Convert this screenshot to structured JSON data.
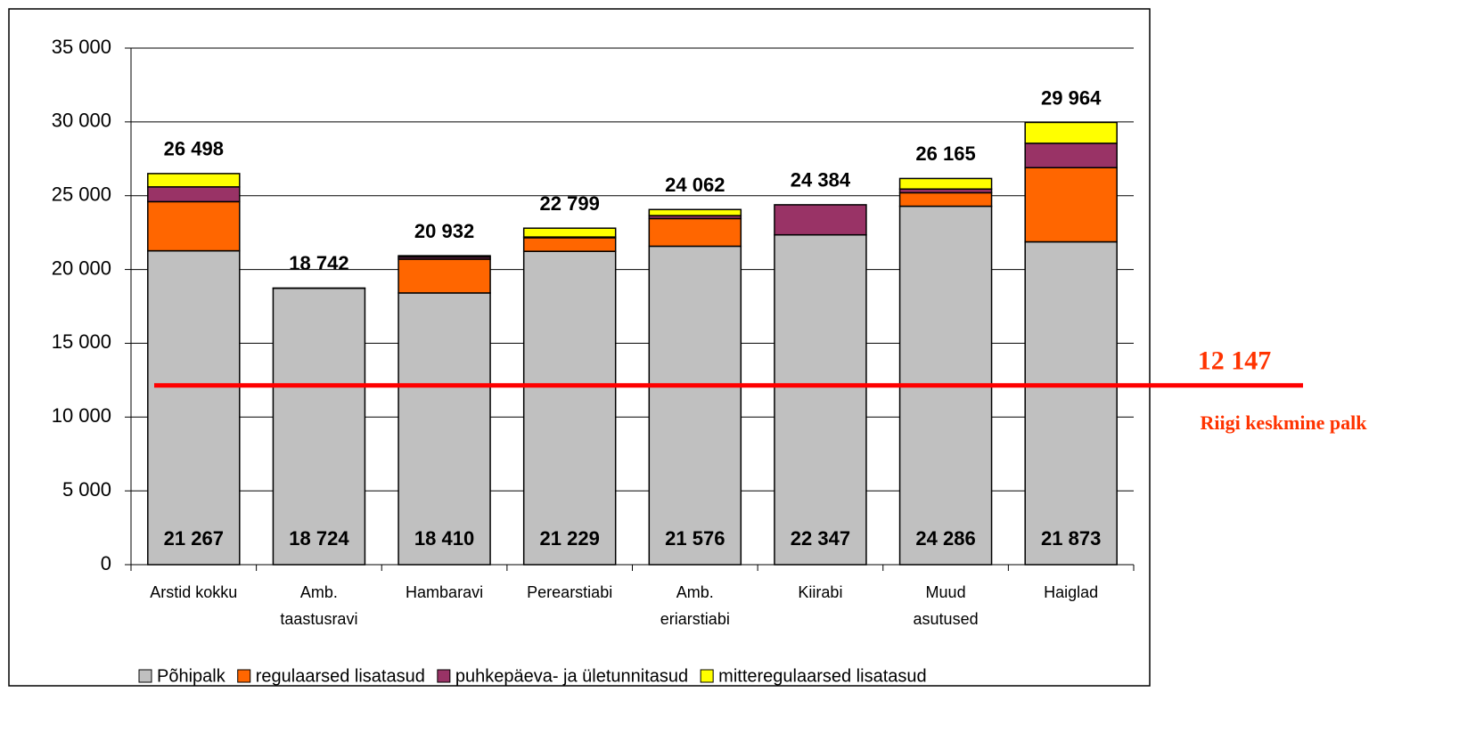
{
  "chart_data": {
    "type": "stacked_bar",
    "categories": [
      "Arstid kokku",
      "Amb.\ntaastusravi",
      "Hambaravi",
      "Perearstiabi",
      "Amb.\neriarstiabi",
      "Kiirabi",
      "Muud\nasutused",
      "Haiglad"
    ],
    "series": [
      {
        "name": "Põhipalk",
        "color": "#c0c0c0",
        "values": [
          21267,
          18724,
          18410,
          21229,
          21576,
          22347,
          24286,
          21873
        ],
        "value_labels": [
          "21 267",
          "18 724",
          "18 410",
          "21 229",
          "21 576",
          "22 347",
          "24 286",
          "21 873"
        ]
      },
      {
        "name": "regulaarsed lisatasud",
        "color": "#ff6600",
        "values": [
          3330,
          18,
          2290,
          921,
          1874,
          0,
          914,
          5027
        ]
      },
      {
        "name": "puhkepäeva- ja ületunnitasud",
        "color": "#993366",
        "values": [
          1000,
          0,
          140,
          50,
          200,
          2037,
          250,
          1650
        ]
      },
      {
        "name": "mitteregulaarsed lisatasud",
        "color": "#ffff00",
        "values": [
          901,
          0,
          92,
          599,
          412,
          0,
          715,
          1414
        ]
      }
    ],
    "totals": [
      26498,
      18742,
      20932,
      22799,
      24062,
      24384,
      26165,
      29964
    ],
    "total_labels": [
      "26 498",
      "18 742",
      "20 932",
      "22 799",
      "24 062",
      "24 384",
      "26 165",
      "29 964"
    ],
    "reference": {
      "value": 12147,
      "label": "12 147",
      "text": "Riigi keskmine palk",
      "color": "#ff0000"
    },
    "ylim": [
      0,
      35000
    ],
    "yticks": [
      0,
      {
        "value": 5000,
        "label": "5 000"
      },
      {
        "value": 10000,
        "label": "10 000"
      },
      {
        "value": 15000,
        "label": "15 000"
      },
      {
        "value": 20000,
        "label": "20 000"
      },
      {
        "value": 25000,
        "label": "25 000"
      },
      {
        "value": 30000,
        "label": "30 000"
      },
      {
        "value": 35000,
        "label": "35 000"
      }
    ],
    "grid": true
  }
}
